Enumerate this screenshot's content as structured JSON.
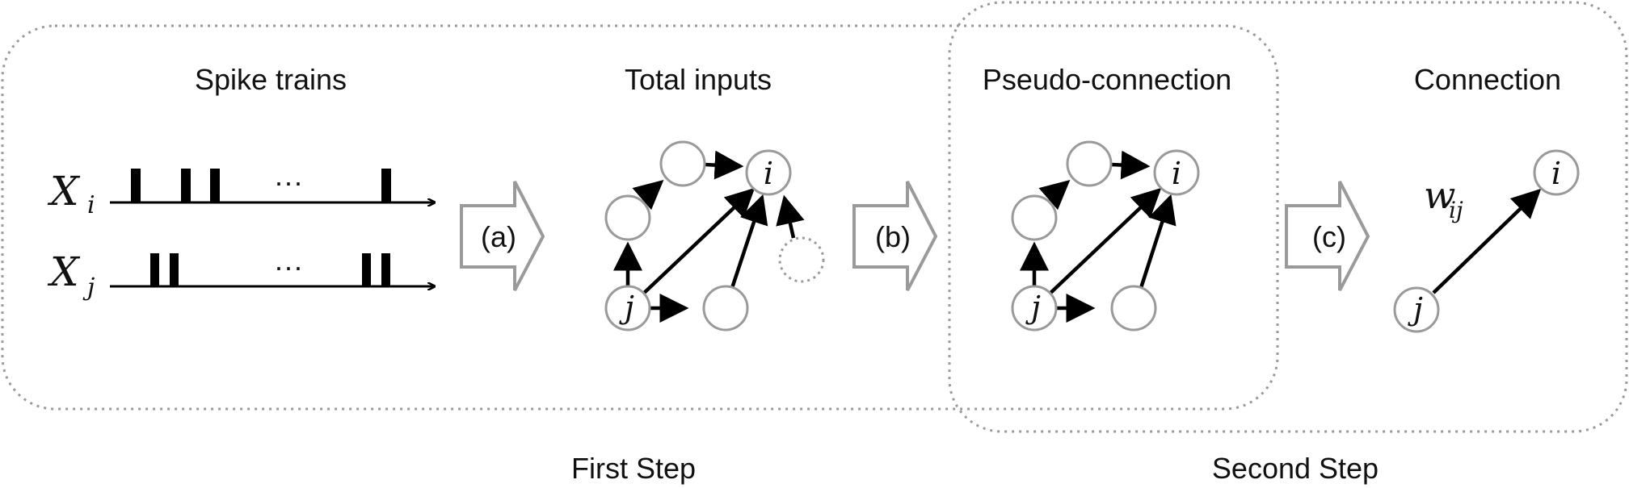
{
  "panels": {
    "spike_trains_title": "Spike trains",
    "total_inputs_title": "Total inputs",
    "pseudo_connection_title": "Pseudo-connection",
    "connection_title": "Connection"
  },
  "spike_labels": {
    "xi_base": "X",
    "xi_sub": "i",
    "xj_base": "X",
    "xj_sub": "j",
    "ellipsis": "···"
  },
  "step_arrows": {
    "a": "(a)",
    "b": "(b)",
    "c": "(c)"
  },
  "node_labels": {
    "i": "i",
    "j": "j"
  },
  "weight_label": {
    "base": "w",
    "sub": "ij"
  },
  "steps": {
    "first": "First Step",
    "second": "Second Step"
  },
  "colors": {
    "box_stroke": "#9a9a9a",
    "edge": "#000000",
    "text": "#111111"
  }
}
